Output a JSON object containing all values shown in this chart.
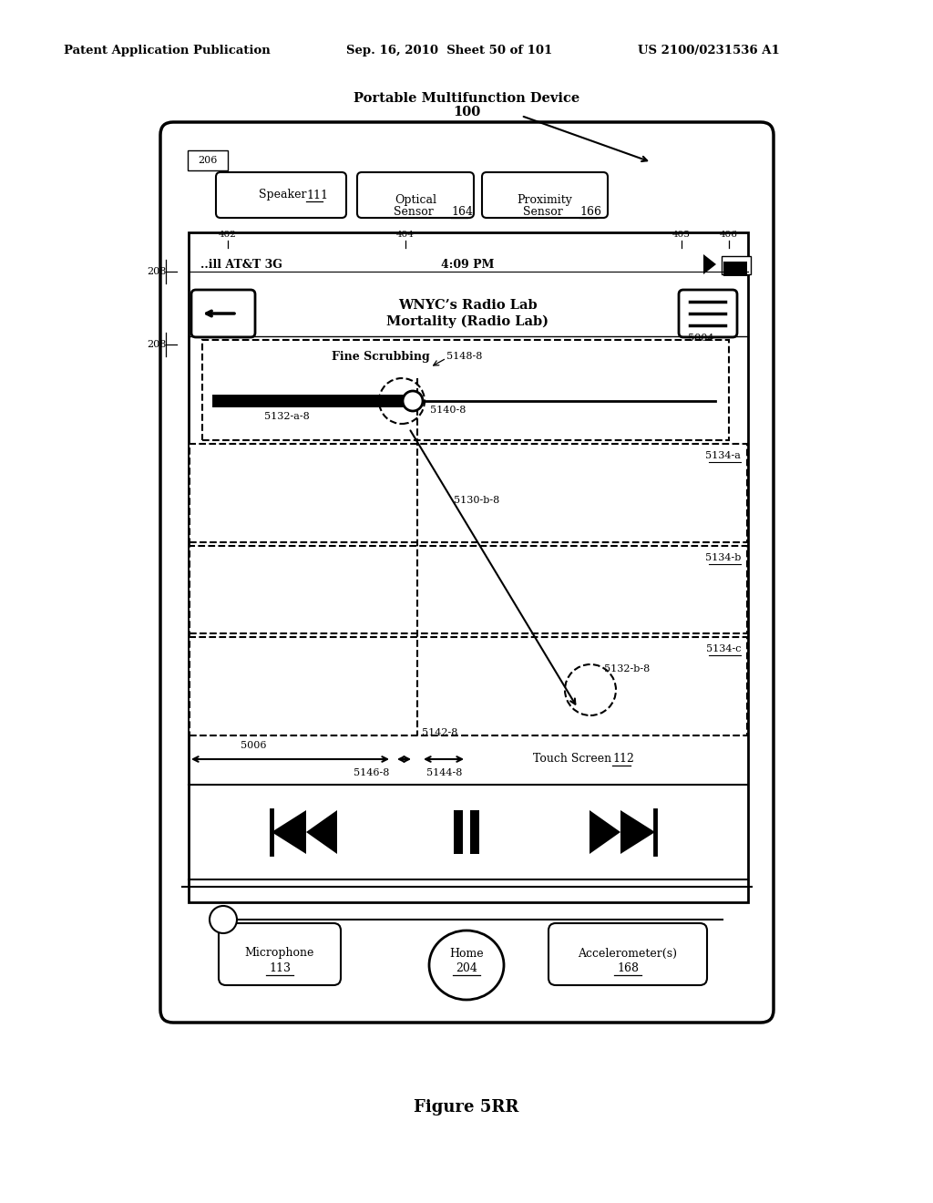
{
  "bg": "#ffffff",
  "header_left": "Patent Application Publication",
  "header_mid": "Sep. 16, 2010  Sheet 50 of 101",
  "header_right": "US 2100/0231536 A1",
  "device_title": "Portable Multifunction Device",
  "device_num": "100",
  "ref_206": "206",
  "status_carrier": "..ill AT&T 3G",
  "status_time": "4:09 PM",
  "song_line1": "WNYC’s Radio Lab",
  "song_line2": "Mortality (Radio Lab)",
  "ref_5004": "5004",
  "scrub_label": "Fine Scrubbing",
  "ref_5148": "5148-8",
  "ref_5140": "5140-8",
  "ref_5132a": "5132-a-8",
  "ref_5134a": "5134-a",
  "ref_5134b": "5134-b",
  "ref_5134c": "5134-c",
  "ref_5130b": "5130-b-8",
  "ref_5132b": "5132-b-8",
  "ref_5142": "5142-8",
  "ref_5146": "5146-8",
  "ref_5144": "5144-8",
  "ref_5006": "5006",
  "ref_402": "402",
  "ref_404": "404",
  "ref_405": "405",
  "ref_406": "406",
  "ref_208": "208",
  "ts_label": "Touch Screen ",
  "ts_num": "112",
  "speaker_label": "Speaker ",
  "speaker_num": "111",
  "optical_line1": "Optical",
  "optical_line2": "Sensor ",
  "optical_num": "164",
  "prox_line1": "Proximity",
  "prox_line2": "Sensor ",
  "prox_num": "166",
  "mic_label": "Microphone",
  "mic_num": "113",
  "home_label": "Home",
  "home_num": "204",
  "accel_label": "Accelerometer(s)",
  "accel_num": "168",
  "fig_label": "Figure 5RR"
}
